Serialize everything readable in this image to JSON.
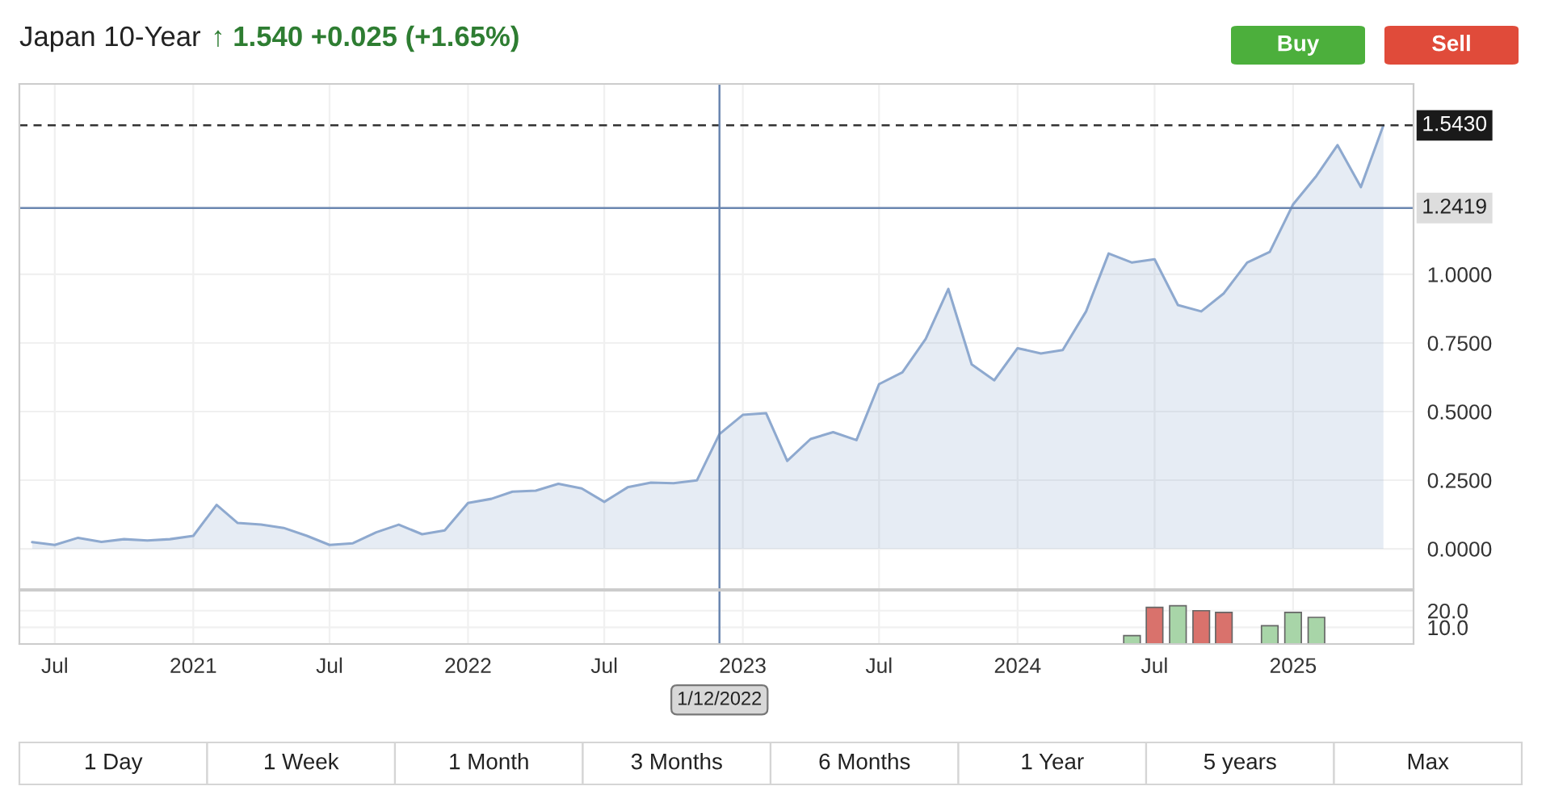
{
  "chart_data": [
    {
      "type": "area",
      "title": "Japan 10-Year",
      "subtitle": "↑ 1.540 +0.025 (+1.65%)",
      "x": [
        "2020-06",
        "2020-07",
        "2020-08",
        "2020-09",
        "2020-10",
        "2020-11",
        "2020-12",
        "2021-01",
        "2021-02",
        "2021-03",
        "2021-04",
        "2021-05",
        "2021-06",
        "2021-07",
        "2021-08",
        "2021-09",
        "2021-10",
        "2021-11",
        "2021-12",
        "2022-01",
        "2022-02",
        "2022-03",
        "2022-04",
        "2022-05",
        "2022-06",
        "2022-07",
        "2022-08",
        "2022-09",
        "2022-10",
        "2022-11",
        "2022-12",
        "2023-01",
        "2023-02",
        "2023-03",
        "2023-04",
        "2023-05",
        "2023-06",
        "2023-07",
        "2023-08",
        "2023-09",
        "2023-10",
        "2023-11",
        "2023-12",
        "2024-01",
        "2024-02",
        "2024-03",
        "2024-04",
        "2024-05",
        "2024-06",
        "2024-07",
        "2024-08",
        "2024-09",
        "2024-10",
        "2024-11",
        "2024-12",
        "2025-01",
        "2025-02",
        "2025-03",
        "2025-04",
        "2025-05"
      ],
      "series": [
        {
          "color": "#8ea9cf",
          "values": [
            0.024,
            0.014,
            0.04,
            0.025,
            0.035,
            0.03,
            0.035,
            0.047,
            0.16,
            0.094,
            0.088,
            0.076,
            0.047,
            0.014,
            0.02,
            0.06,
            0.088,
            0.053,
            0.067,
            0.167,
            0.182,
            0.208,
            0.212,
            0.237,
            0.22,
            0.171,
            0.224,
            0.241,
            0.239,
            0.249,
            0.418,
            0.488,
            0.494,
            0.32,
            0.4,
            0.425,
            0.396,
            0.6,
            0.643,
            0.765,
            0.947,
            0.672,
            0.614,
            0.731,
            0.712,
            0.724,
            0.865,
            1.076,
            1.043,
            1.055,
            0.888,
            0.865,
            0.931,
            1.043,
            1.082,
            1.255,
            1.359,
            1.471,
            1.318,
            1.543
          ]
        }
      ],
      "xlim": [
        "2020-05-15",
        "2025-06-10"
      ],
      "xticks": [
        {
          "value": "2020-07-01",
          "label": null
        },
        {
          "value": "2021-01-01",
          "label": null
        },
        {
          "value": "2021-07-01",
          "label": null
        },
        {
          "value": "2022-01-01",
          "label": null
        },
        {
          "value": "2022-07-01",
          "label": null
        },
        {
          "value": "2023-01-01",
          "label": null
        },
        {
          "value": "2023-07-01",
          "label": null
        },
        {
          "value": "2024-01-01",
          "label": null
        },
        {
          "value": "2024-07-01",
          "label": null
        },
        {
          "value": "2025-01-01",
          "label": null
        }
      ],
      "ylim": [
        -0.147,
        1.694
      ],
      "yticks": [
        {
          "value": 0,
          "label": "0.0000"
        },
        {
          "value": 0.25,
          "label": "0.2500"
        },
        {
          "value": 0.5,
          "label": "0.5000"
        },
        {
          "value": 0.75,
          "label": "0.7500"
        },
        {
          "value": 1.0,
          "label": "1.0000"
        }
      ],
      "tick_labels": "y",
      "grid": true,
      "legend": false,
      "ref_lines": [
        {
          "axis": "y",
          "value": 1.543,
          "label": "1.5430",
          "color": "#333333",
          "line_style": "dashed"
        },
        {
          "axis": "y",
          "value": 1.2419,
          "label": "1.2419",
          "color": "#6a86b0",
          "line_style": "solid"
        },
        {
          "axis": "x",
          "value": "2022-12-01",
          "color": "#6a86b0",
          "line_style": "solid"
        }
      ],
      "annotations": [
        "Buy",
        "Sell",
        "1 Day",
        "1 Week",
        "1 Month",
        "3 Months",
        "6 Months",
        "1 Year",
        "5 years",
        "Max"
      ]
    },
    {
      "type": "bar",
      "x": [
        "2024-06",
        "2024-07",
        "2024-08",
        "2024-09",
        "2024-10",
        "2024-12",
        "2025-01",
        "2025-02"
      ],
      "values": [
        5,
        22,
        23,
        20,
        19,
        11,
        19,
        16
      ],
      "colors": [
        "#a8d5a8",
        "#d9726c",
        "#a8d5a8",
        "#d9726c",
        "#d9726c",
        "#a8d5a8",
        "#a8d5a8",
        "#a8d5a8"
      ],
      "xlim": [
        "2020-05-15",
        "2025-06-10"
      ],
      "xticks": [
        {
          "value": "2020-07-01",
          "label": "Jul"
        },
        {
          "value": "2021-01-01",
          "label": "2021"
        },
        {
          "value": "2021-07-01",
          "label": "Jul"
        },
        {
          "value": "2022-01-01",
          "label": "2022"
        },
        {
          "value": "2022-07-01",
          "label": "Jul"
        },
        {
          "value": "2023-01-01",
          "label": "2023"
        },
        {
          "value": "2023-07-01",
          "label": "Jul"
        },
        {
          "value": "2024-01-01",
          "label": "2024"
        },
        {
          "value": "2024-07-01",
          "label": "Jul"
        },
        {
          "value": "2025-01-01",
          "label": "2025"
        }
      ],
      "ylim": [
        0,
        32
      ],
      "yticks": [
        {
          "value": 10,
          "label": "10.0"
        },
        {
          "value": 20,
          "label": "20.0"
        }
      ],
      "grid": true,
      "legend": false,
      "ref_lines": [
        {
          "axis": "x",
          "value": "2022-12-01",
          "label": "1/12/2022",
          "color": "#6a86b0",
          "line_style": "solid"
        }
      ]
    }
  ]
}
